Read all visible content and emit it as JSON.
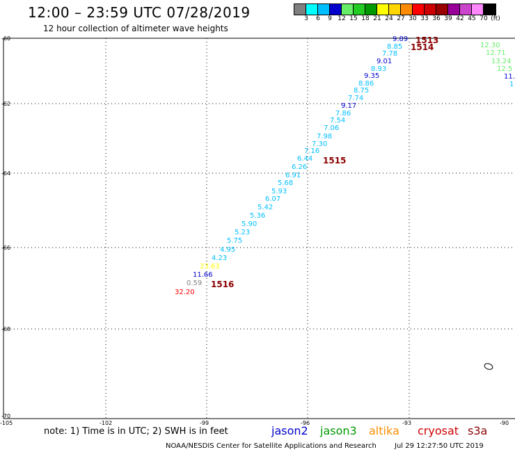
{
  "title": "12:00 – 23:59 UTC 07/28/2019",
  "subtitle": "12 hour collection of altimeter wave heights",
  "color_scale": {
    "colors": [
      "#808080",
      "#00ffff",
      "#00bfff",
      "#0000cd",
      "#66ee66",
      "#22cc22",
      "#009900",
      "#ffff00",
      "#ffd700",
      "#ff8c00",
      "#ff0000",
      "#cc0000",
      "#990000",
      "#990099",
      "#cc44cc",
      "#ff88ff",
      "#000000"
    ],
    "labels": [
      "3",
      "6",
      "9",
      "12",
      "15",
      "18",
      "21",
      "24",
      "27",
      "30",
      "33",
      "36",
      "39",
      "42",
      "45",
      "70",
      "(ft)"
    ]
  },
  "axes": {
    "lat_labels": [
      "-60",
      "-62",
      "-64",
      "-66",
      "-68",
      "-70"
    ],
    "lon_labels": [
      "-105",
      "-102",
      "-99",
      "-96",
      "-93",
      "-90"
    ]
  },
  "passes": [
    "1513",
    "1514",
    "1515",
    "1516"
  ],
  "track_main": [
    {
      "v": "9.89",
      "c": "#0000cd"
    },
    {
      "v": "8.85",
      "c": "#00bfff"
    },
    {
      "v": "7.78",
      "c": "#00bfff"
    },
    {
      "v": "9.01",
      "c": "#0000cd"
    },
    {
      "v": "8.93",
      "c": "#00bfff"
    },
    {
      "v": "9.35",
      "c": "#0000cd"
    },
    {
      "v": "8.86",
      "c": "#00bfff"
    },
    {
      "v": "8.75",
      "c": "#00bfff"
    },
    {
      "v": "7.74",
      "c": "#00bfff"
    },
    {
      "v": "9.17",
      "c": "#0000cd"
    },
    {
      "v": "7.86",
      "c": "#00bfff"
    },
    {
      "v": "7.54",
      "c": "#00bfff"
    },
    {
      "v": "7.06",
      "c": "#00bfff"
    },
    {
      "v": "7.98",
      "c": "#00bfff"
    },
    {
      "v": "7.30",
      "c": "#00bfff"
    },
    {
      "v": "7.16",
      "c": "#00bfff"
    },
    {
      "v": "6.44",
      "c": "#00bfff"
    },
    {
      "v": "6.26",
      "c": "#00bfff"
    },
    {
      "v": "6.91",
      "c": "#00bfff"
    },
    {
      "v": "5.68",
      "c": "#00bfff"
    },
    {
      "v": "5.93",
      "c": "#00bfff"
    },
    {
      "v": "6.07",
      "c": "#00bfff"
    },
    {
      "v": "5.42",
      "c": "#00bfff"
    },
    {
      "v": "5.36",
      "c": "#00bfff"
    },
    {
      "v": "5.90",
      "c": "#00bfff"
    },
    {
      "v": "5.23",
      "c": "#00bfff"
    },
    {
      "v": "5.75",
      "c": "#00bfff"
    },
    {
      "v": "4.95",
      "c": "#00bfff"
    },
    {
      "v": "4.23",
      "c": "#00bfff"
    },
    {
      "v": "23.63",
      "c": "#ffff00"
    },
    {
      "v": "11.66",
      "c": "#0000cd"
    },
    {
      "v": "0.59",
      "c": "#808080"
    },
    {
      "v": "32.20",
      "c": "#ff0000"
    }
  ],
  "track_right": [
    {
      "v": "12.30",
      "c": "#66ee66"
    },
    {
      "v": "12.71",
      "c": "#66ee66"
    },
    {
      "v": "13.24",
      "c": "#66ee66"
    },
    {
      "v": "12.5",
      "c": "#66ee66"
    },
    {
      "v": "11.",
      "c": "#0000cd"
    },
    {
      "v": "1",
      "c": "#00bfff"
    }
  ],
  "note": "note: 1) Time is in UTC; 2) SWH is in feet",
  "legend": [
    {
      "label": "jason2",
      "color": "#0000cd"
    },
    {
      "label": "jason3",
      "color": "#009900"
    },
    {
      "label": "altika",
      "color": "#ff8c00"
    },
    {
      "label": "cryosat",
      "color": "#cc0000"
    },
    {
      "label": "s3a",
      "color": "#8b0000"
    }
  ],
  "credit": "NOAA/NESDIS Center for Satellite Applications and Research",
  "timestamp": "Jul 29 12:27:50 UTC 2019"
}
